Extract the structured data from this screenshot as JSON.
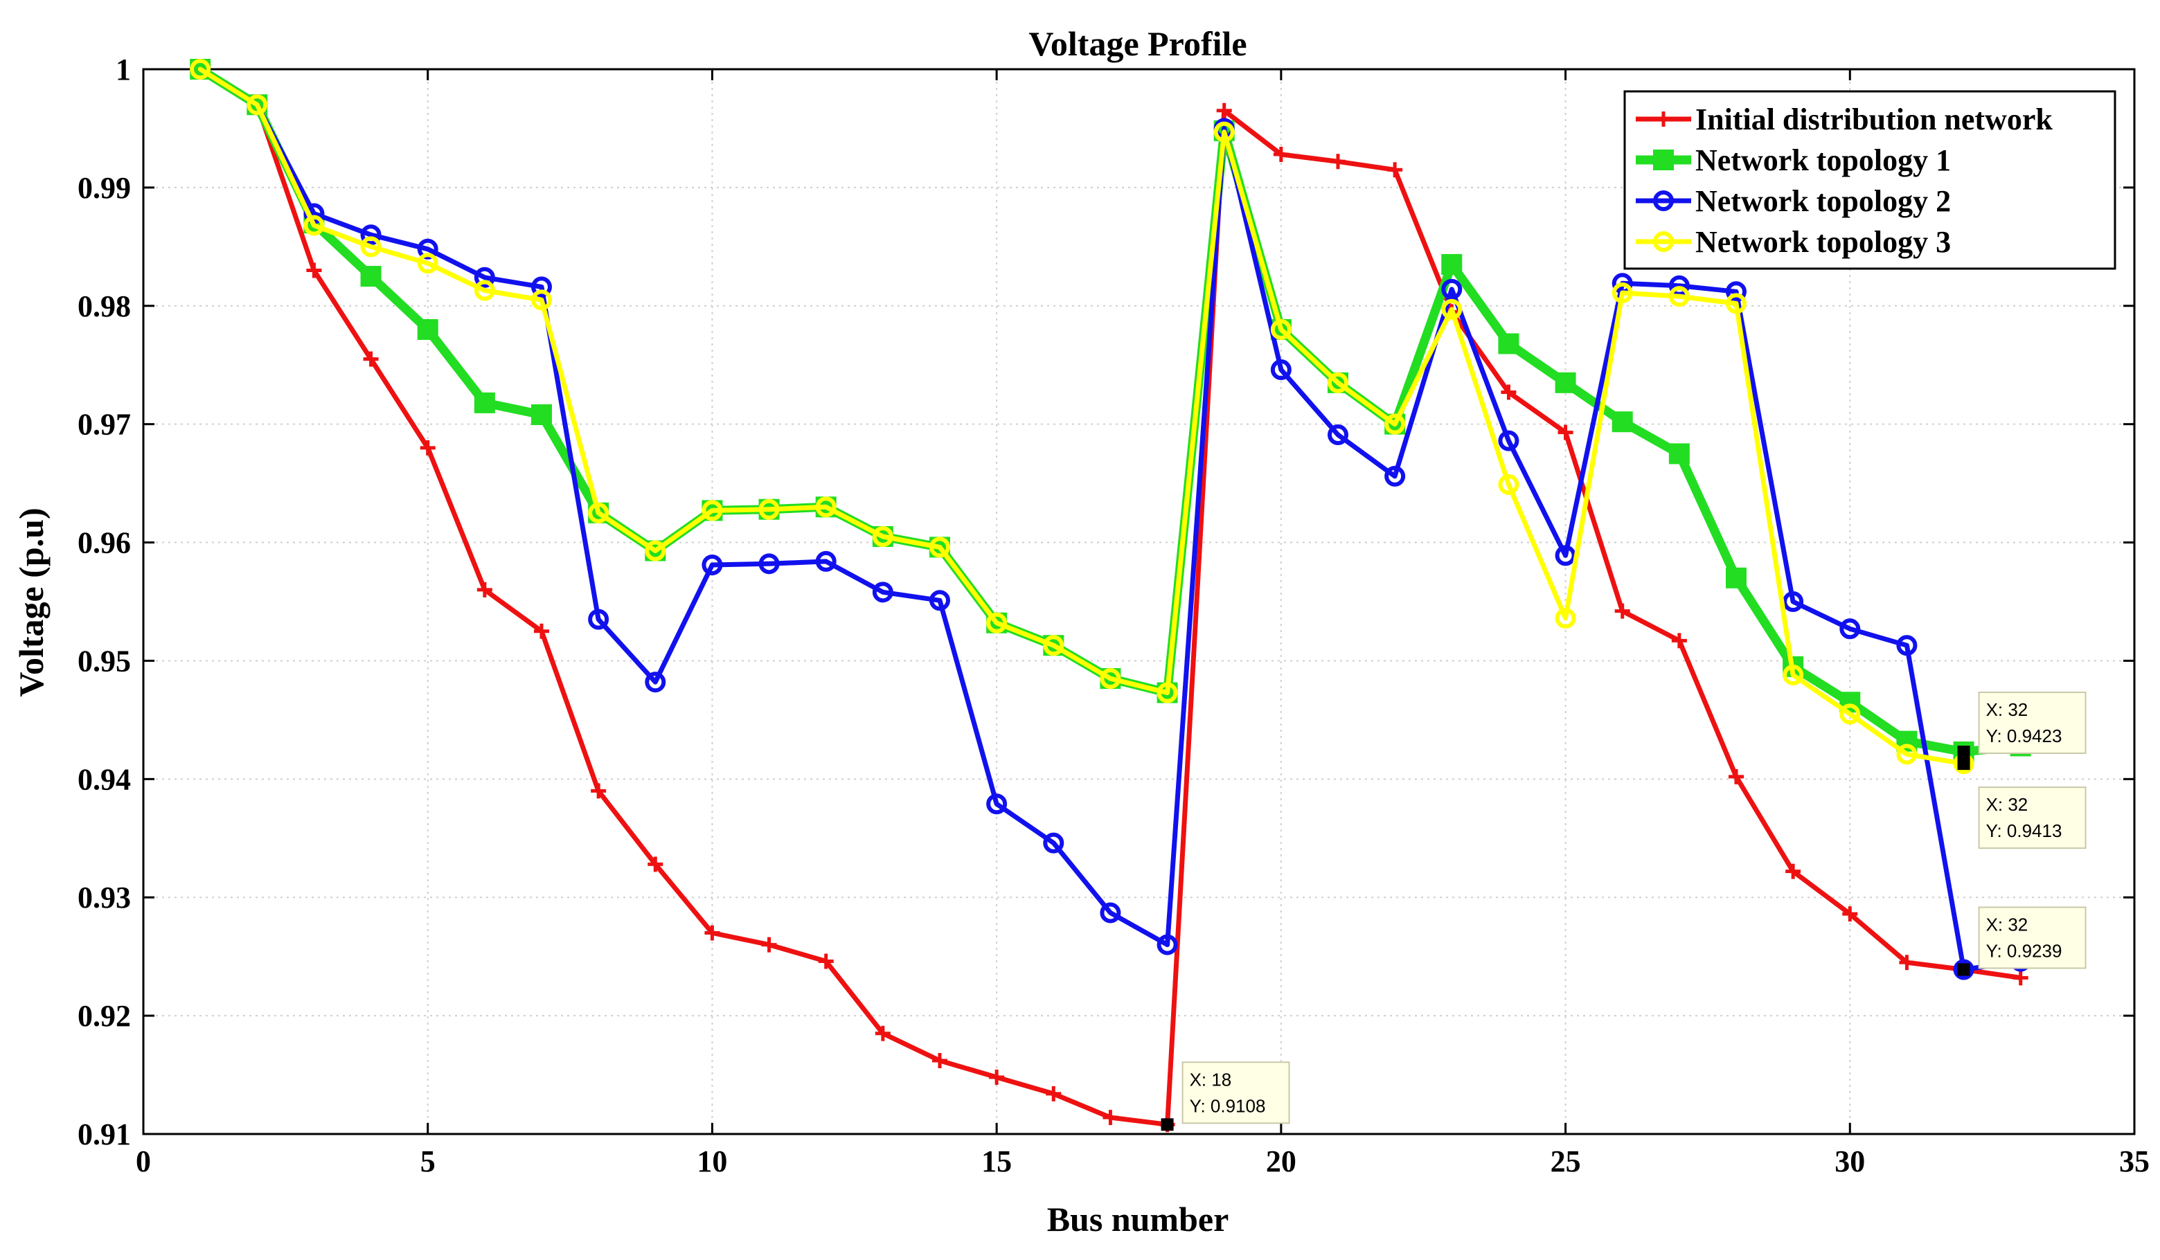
{
  "chart_data": {
    "type": "line",
    "title": "Voltage Profile",
    "xlabel": "Bus number",
    "ylabel": "Voltage (p.u)",
    "xlim": [
      0,
      35
    ],
    "ylim": [
      0.91,
      1.0
    ],
    "xticks": [
      0,
      5,
      10,
      15,
      20,
      25,
      30,
      35
    ],
    "xtick_labels": [
      "0",
      "5",
      "10",
      "15",
      "20",
      "25",
      "30",
      "35"
    ],
    "yticks": [
      0.91,
      0.92,
      0.93,
      0.94,
      0.95,
      0.96,
      0.97,
      0.98,
      0.99,
      1.0
    ],
    "ytick_labels": [
      "0.91",
      "0.92",
      "0.93",
      "0.94",
      "0.95",
      "0.96",
      "0.97",
      "0.98",
      "0.99",
      "1"
    ],
    "legend_position": "top-right",
    "x": [
      1,
      2,
      3,
      4,
      5,
      6,
      7,
      8,
      9,
      10,
      11,
      12,
      13,
      14,
      15,
      16,
      17,
      18,
      19,
      20,
      21,
      22,
      23,
      24,
      25,
      26,
      27,
      28,
      29,
      30,
      31,
      32,
      33
    ],
    "series": [
      {
        "name": "Initial distribution network",
        "color": "#ee1111",
        "marker": "+",
        "x": [
          1,
          2,
          3,
          4,
          5,
          6,
          7,
          8,
          9,
          10,
          11,
          12,
          13,
          14,
          15,
          16,
          17,
          18,
          19,
          20,
          21,
          22,
          23,
          24,
          25,
          26,
          27,
          28,
          29,
          30,
          31,
          32,
          33
        ],
        "values": [
          1.0,
          0.997,
          0.983,
          0.9755,
          0.968,
          0.956,
          0.9525,
          0.939,
          0.9328,
          0.927,
          0.926,
          0.9246,
          0.9185,
          0.9162,
          0.9148,
          0.9134,
          0.9114,
          0.9108,
          0.9965,
          0.9928,
          0.9922,
          0.9915,
          0.9795,
          0.9727,
          0.9693,
          0.9542,
          0.9517,
          0.9402,
          0.9322,
          0.9286,
          0.9245,
          0.9239,
          0.9232
        ]
      },
      {
        "name": "Network topology 1",
        "color": "#22dd22",
        "marker": "square",
        "x": [
          1,
          2,
          3,
          4,
          5,
          6,
          7,
          8,
          9,
          10,
          11,
          12,
          13,
          14,
          15,
          16,
          17,
          18,
          19,
          20,
          21,
          22,
          23,
          24,
          25,
          26,
          27,
          28,
          29,
          30,
          31,
          32,
          33
        ],
        "values": [
          1.0,
          0.997,
          0.987,
          0.9825,
          0.978,
          0.9718,
          0.9708,
          0.9625,
          0.9593,
          0.9627,
          0.9628,
          0.963,
          0.9605,
          0.9596,
          0.9532,
          0.9513,
          0.9485,
          0.9473,
          0.9948,
          0.978,
          0.9735,
          0.97,
          0.9835,
          0.9768,
          0.9735,
          0.9702,
          0.9675,
          0.957,
          0.9495,
          0.9465,
          0.9432,
          0.9423,
          0.9428
        ]
      },
      {
        "name": "Network topology 2",
        "color": "#1111ee",
        "marker": "o",
        "x": [
          1,
          2,
          3,
          4,
          5,
          6,
          7,
          8,
          9,
          10,
          11,
          12,
          13,
          14,
          15,
          16,
          17,
          18,
          19,
          20,
          21,
          22,
          23,
          24,
          25,
          26,
          27,
          28,
          29,
          30,
          31,
          32,
          33
        ],
        "values": [
          1.0,
          0.997,
          0.9878,
          0.986,
          0.9848,
          0.9824,
          0.9816,
          0.9535,
          0.9482,
          0.9581,
          0.9582,
          0.9584,
          0.9558,
          0.9551,
          0.9379,
          0.9346,
          0.9287,
          0.926,
          0.995,
          0.9746,
          0.9691,
          0.9656,
          0.9814,
          0.9686,
          0.9589,
          0.9819,
          0.9817,
          0.9812,
          0.955,
          0.9527,
          0.9513,
          0.9239,
          0.9246
        ]
      },
      {
        "name": "Network topology 3",
        "color": "#ffff00",
        "marker": "o",
        "x": [
          1,
          2,
          3,
          4,
          5,
          6,
          7,
          8,
          9,
          10,
          11,
          12,
          13,
          14,
          15,
          16,
          17,
          18,
          19,
          20,
          21,
          22,
          23,
          24,
          25,
          26,
          27,
          28,
          29,
          30,
          31,
          32
        ],
        "values": [
          1.0,
          0.997,
          0.9868,
          0.985,
          0.9836,
          0.9813,
          0.9805,
          0.9625,
          0.9593,
          0.9627,
          0.9628,
          0.963,
          0.9605,
          0.9596,
          0.9532,
          0.9513,
          0.9485,
          0.9473,
          0.9947,
          0.978,
          0.9735,
          0.97,
          0.9797,
          0.9649,
          0.9536,
          0.9811,
          0.9808,
          0.9802,
          0.9488,
          0.9455,
          0.9421,
          0.9413
        ]
      }
    ],
    "annotations": [
      {
        "x": 18,
        "y": 0.9108,
        "line1": "X: 18",
        "line2": "Y: 0.9108",
        "placement": "right"
      },
      {
        "x": 32,
        "y": 0.9423,
        "line1": "X: 32",
        "line2": "Y: 0.9423",
        "placement": "upper-right"
      },
      {
        "x": 32,
        "y": 0.9413,
        "line1": "X: 32",
        "line2": "Y: 0.9413",
        "placement": "lower-right"
      },
      {
        "x": 32,
        "y": 0.9239,
        "line1": "X: 32",
        "line2": "Y: 0.9239",
        "placement": "upper-right"
      }
    ]
  }
}
